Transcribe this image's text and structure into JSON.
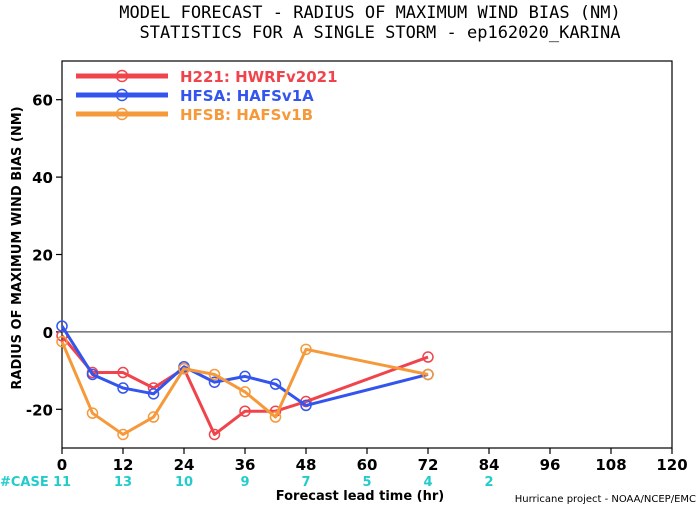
{
  "chart_data": {
    "type": "line",
    "title": "MODEL FORECAST - RADIUS OF MAXIMUM WIND BIAS (NM)",
    "subtitle": "STATISTICS FOR A SINGLE STORM - ep162020_KARINA",
    "xlabel": "Forecast lead time (hr)",
    "ylabel": "RADIUS OF MAXIMUM WIND BIAS (NM)",
    "xlim": [
      0,
      120
    ],
    "ylim": [
      -30,
      70
    ],
    "xticks": [
      0,
      12,
      24,
      36,
      48,
      60,
      72,
      84,
      96,
      108,
      120
    ],
    "yticks": [
      -20,
      0,
      20,
      40,
      60
    ],
    "zero_line": true,
    "legend_position": "top-left",
    "series": [
      {
        "name": "H221: HWRFv2021",
        "color": "#f0444c",
        "x": [
          0,
          6,
          12,
          18,
          24,
          30,
          36,
          42,
          48,
          72
        ],
        "y": [
          -1,
          -10.5,
          -10.5,
          -14.5,
          -9.5,
          -26.5,
          -20.5,
          -20.5,
          -18,
          -6.5
        ]
      },
      {
        "name": "HFSA: HAFSv1A",
        "color": "#3355ee",
        "x": [
          0,
          6,
          12,
          18,
          24,
          30,
          36,
          42,
          48,
          72
        ],
        "y": [
          1.5,
          -11,
          -14.5,
          -16,
          -9,
          -13,
          -11.5,
          -13.5,
          -19,
          -11
        ]
      },
      {
        "name": "HFSB: HAFSv1B",
        "color": "#f5993a",
        "x": [
          0,
          6,
          12,
          18,
          24,
          30,
          36,
          42,
          48,
          72
        ],
        "y": [
          -2.5,
          -21,
          -26.5,
          -22,
          -9.5,
          -11,
          -15.5,
          -22,
          -4.5,
          -11
        ]
      }
    ],
    "cases": {
      "label": "#CASE",
      "x": [
        0,
        12,
        24,
        36,
        48,
        60,
        72,
        84
      ],
      "values": [
        "11",
        "13",
        "10",
        "9",
        "7",
        "5",
        "4",
        "2"
      ]
    },
    "credit": "Hurricane project - NOAA/NCEP/EMC"
  }
}
